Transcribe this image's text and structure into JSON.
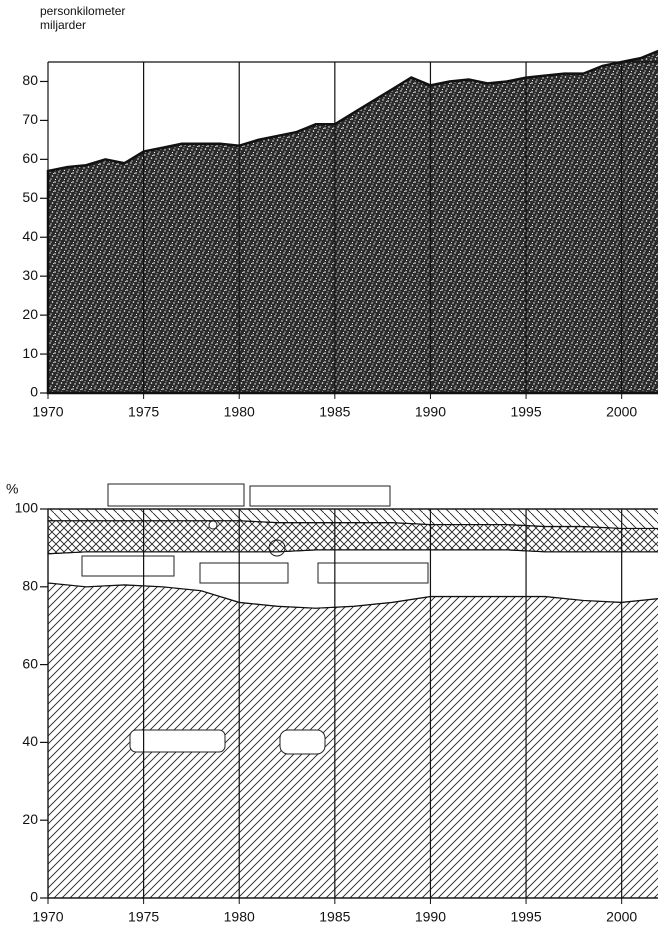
{
  "chart_data": [
    {
      "type": "area",
      "ylabel_lines": [
        "personkilometer",
        "miljarder"
      ],
      "x": [
        1970,
        1971,
        1972,
        1973,
        1974,
        1975,
        1976,
        1977,
        1978,
        1979,
        1980,
        1981,
        1982,
        1983,
        1984,
        1985,
        1986,
        1987,
        1988,
        1989,
        1990,
        1991,
        1992,
        1993,
        1994,
        1995,
        1996,
        1997,
        1998,
        1999,
        2000,
        2001,
        2002
      ],
      "values": [
        57,
        58,
        58.5,
        60,
        59,
        62,
        63,
        64,
        64,
        64,
        63.5,
        65,
        66,
        67,
        69,
        69,
        72,
        75,
        78,
        81,
        79,
        80,
        80.5,
        79.5,
        80,
        81,
        81.5,
        82,
        82,
        84,
        85,
        86,
        88
      ],
      "xlim": [
        1970,
        2001.9
      ],
      "xticks": [
        1970,
        1975,
        1980,
        1985,
        1990,
        1995,
        2000
      ],
      "ylim": [
        0,
        85
      ],
      "yticks": [
        0,
        10,
        20,
        30,
        40,
        50,
        60,
        70,
        80
      ]
    },
    {
      "type": "stacked_area",
      "ylabel": "%",
      "x": [
        1970,
        1972,
        1974,
        1976,
        1978,
        1980,
        1982,
        1984,
        1986,
        1988,
        1990,
        1992,
        1994,
        1996,
        1998,
        2000,
        2002
      ],
      "series": [
        {
          "values": [
            81,
            80,
            80.5,
            80,
            79,
            76,
            75,
            74.5,
            75,
            76,
            77.5,
            77.5,
            77.5,
            77.5,
            76.5,
            76,
            77
          ]
        },
        {
          "values": [
            7.5,
            9,
            8.5,
            9,
            10,
            13,
            14,
            15,
            14.5,
            13.5,
            12,
            12,
            12,
            11.5,
            12.5,
            13,
            12
          ]
        },
        {
          "values": [
            8.5,
            8,
            8,
            8,
            8,
            8,
            7.5,
            7,
            7,
            7,
            6.5,
            6.5,
            6.5,
            6.5,
            6.5,
            6,
            6
          ]
        },
        {
          "values": [
            3,
            3,
            3,
            3,
            3,
            3,
            3.5,
            3.5,
            3.5,
            3.5,
            4,
            4,
            4,
            4.5,
            4.5,
            5,
            5
          ]
        }
      ],
      "xlim": [
        1970,
        2001.9
      ],
      "xticks": [
        1970,
        1975,
        1980,
        1985,
        1990,
        1995,
        2000
      ],
      "ylim": [
        0,
        100
      ],
      "yticks": [
        0,
        20,
        40,
        60,
        80,
        100
      ]
    }
  ]
}
